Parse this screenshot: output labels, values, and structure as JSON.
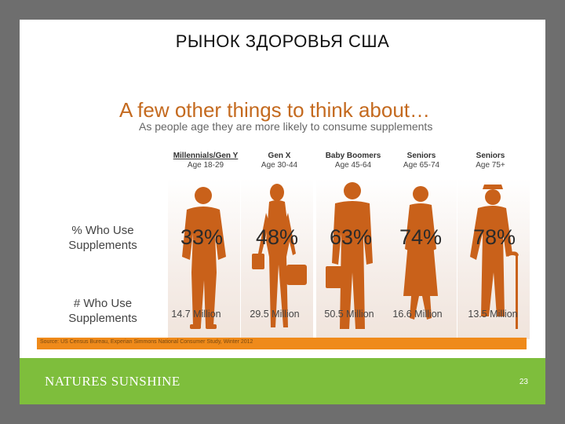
{
  "slide": {
    "title": "РЫНОК ЗДОРОВЬЯ США",
    "headline": "A few other things to think about…",
    "subhead": "As people age they are more likely to consume supplements",
    "row_labels": {
      "use_pct_line1": "% Who Use",
      "use_pct_line2": "Supplements",
      "use_count_line1": "# Who Use",
      "use_count_line2": "Supplements"
    },
    "groups": [
      {
        "name": "Millennials/Gen Y",
        "age": "Age 18-29",
        "pct": "33%",
        "count": "14.7 Million"
      },
      {
        "name": "Gen X",
        "age": "Age 30-44",
        "pct": "48%",
        "count": "29.5 Million"
      },
      {
        "name": "Baby Boomers",
        "age": "Age 45-64",
        "pct": "63%",
        "count": "50.5 Million"
      },
      {
        "name": "Seniors",
        "age": "Age 65-74",
        "pct": "74%",
        "count": "16.6 Million"
      },
      {
        "name": "Seniors",
        "age": "Age 75+",
        "pct": "78%",
        "count": "13.5 Million"
      }
    ],
    "source": "Source: US Census Bureau, Experian Simmons National Consumer Study, Winter 2012",
    "footer": {
      "logo": "NATURES SUNSHINE",
      "page_number": "23"
    },
    "colors": {
      "accent_orange": "#ef8a1a",
      "figure_orange": "#c9611a",
      "headline_orange": "#c46a1f",
      "footer_green": "#7ebe3c"
    },
    "icons": [
      "person-silhouette-icon"
    ]
  }
}
